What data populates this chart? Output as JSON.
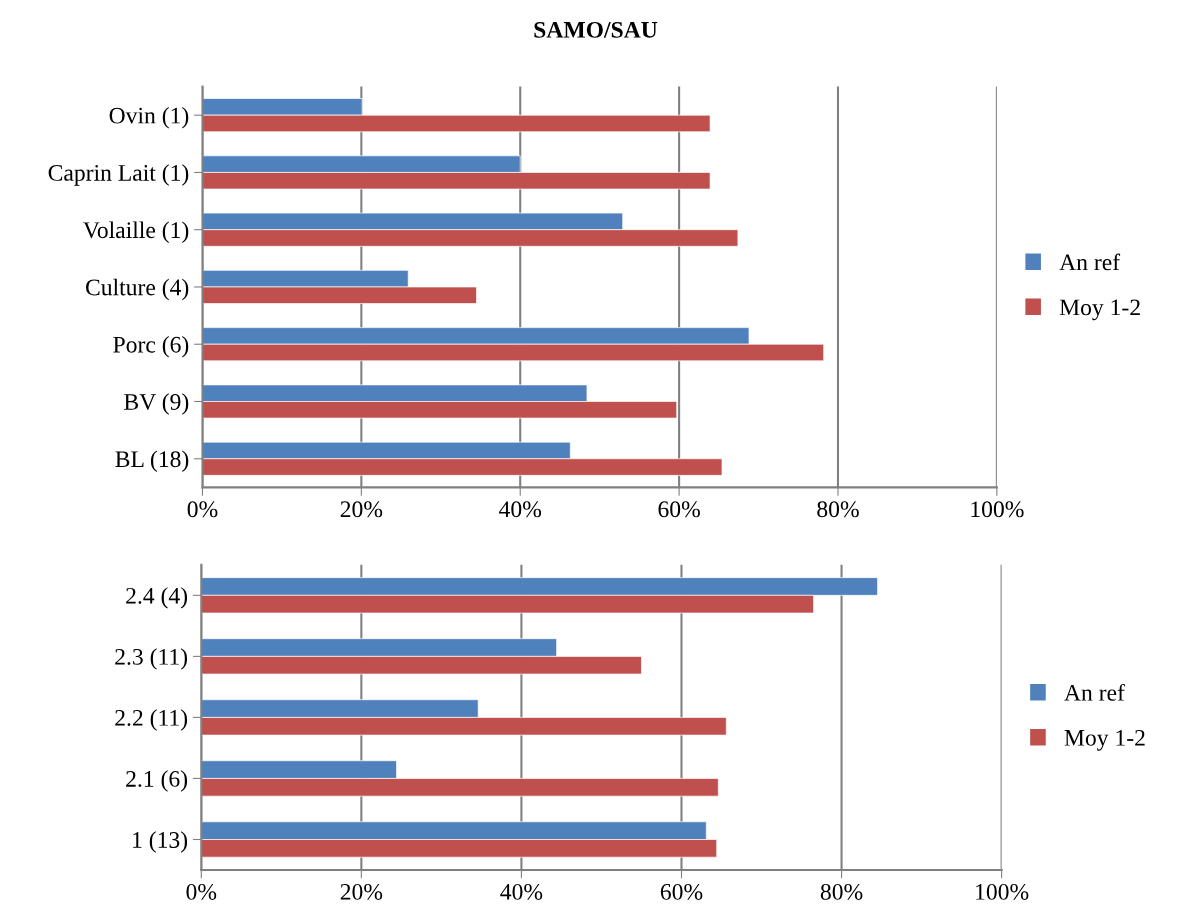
{
  "chart_data": [
    {
      "type": "bar",
      "orientation": "horizontal",
      "title": "SAMO/SAU",
      "categories": [
        "Ovin (1)",
        "Caprin Lait (1)",
        "Volaille (1)",
        "Culture (4)",
        "Porc (6)",
        "BV (9)",
        "BL (18)"
      ],
      "series": [
        {
          "name": "An ref",
          "color": "#4f81bd",
          "values": [
            20.1,
            40,
            52.9,
            25.9,
            68.8,
            48.4,
            46.3
          ]
        },
        {
          "name": "Moy 1-2",
          "color": "#c0504d",
          "values": [
            63.9,
            63.9,
            67.4,
            34.5,
            78.2,
            59.7,
            65.4
          ]
        }
      ],
      "xlim": [
        0,
        100
      ],
      "xticks": [
        {
          "value": 0,
          "label": "0%"
        },
        {
          "value": 20,
          "label": "20%"
        },
        {
          "value": 40,
          "label": "40%"
        },
        {
          "value": 60,
          "label": "60%"
        },
        {
          "value": 80,
          "label": "80%"
        },
        {
          "value": 100,
          "label": "100%"
        }
      ],
      "grid": "x",
      "legend": "right"
    },
    {
      "type": "bar",
      "orientation": "horizontal",
      "categories": [
        "2.4 (4)",
        "2.3 (11)",
        "2.2 (11)",
        "2.1 (6)",
        "1 (13)"
      ],
      "series": [
        {
          "name": "An ref",
          "color": "#4f81bd",
          "values": [
            84.5,
            44.4,
            34.6,
            24.4,
            63.1
          ]
        },
        {
          "name": "Moy 1-2",
          "color": "#c0504d",
          "values": [
            76.5,
            55.0,
            65.6,
            64.6,
            64.4
          ]
        }
      ],
      "xlim": [
        0,
        100
      ],
      "xticks": [
        {
          "value": 0,
          "label": "0%"
        },
        {
          "value": 20,
          "label": "20%"
        },
        {
          "value": 40,
          "label": "40%"
        },
        {
          "value": 60,
          "label": "60%"
        },
        {
          "value": 80,
          "label": "80%"
        },
        {
          "value": 100,
          "label": "100%"
        }
      ],
      "grid": "x",
      "legend": "right"
    }
  ]
}
